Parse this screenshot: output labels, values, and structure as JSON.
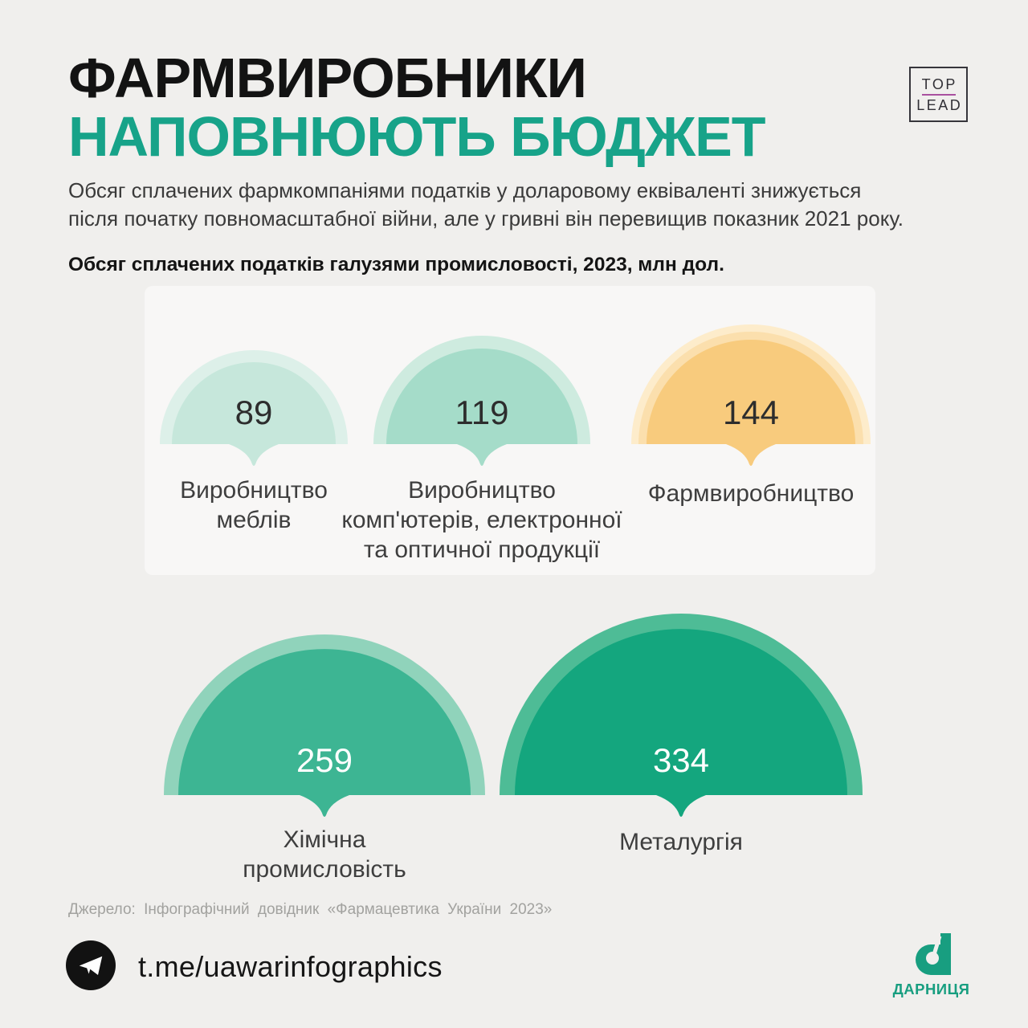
{
  "page": {
    "background": "#f0efed",
    "accent_teal": "#17a389"
  },
  "header": {
    "title_line1": "ФАРМВИРОБНИКИ",
    "title_line2": "НАПОВНЮЮТЬ БЮДЖЕТ",
    "intro_line1": "Обсяг сплачених фармкомпаніями податків у доларовому еквіваленті знижується",
    "intro_line2": "після початку повномасштабної війни, але у гривні він перевищив показник 2021 року."
  },
  "toplead_logo": {
    "top": "TOP",
    "lead": "LEAD",
    "divider_color": "#a9519f",
    "text_color": "#313036"
  },
  "chart_data": {
    "type": "bar",
    "variant": "proportional-area semicircles with pointer tails",
    "title": "Обсяг сплачених податків галузями промисловості, 2023, млн дол.",
    "unit": "млн дол.",
    "year": "2023",
    "categories": [
      "Виробництво меблів",
      "Виробництво комп'ютерів, електронної та оптичної продукції",
      "Фармвиробництво",
      "Хімічна промисловість",
      "Металургія"
    ],
    "values": [
      89,
      119,
      144,
      259,
      334
    ],
    "highlight_category": "Фармвиробництво",
    "legend": "none",
    "items": [
      {
        "value": "89",
        "label_lines": [
          "Виробництво",
          "меблів"
        ],
        "main": "#c6e7db",
        "halo": "#ddf0e9",
        "num_color": "#2d2d2d"
      },
      {
        "value": "119",
        "label_lines": [
          "Виробництво",
          "комп'ютерів, електронної",
          "та оптичної продукції"
        ],
        "main": "#a5dcc9",
        "halo": "#ceebdf",
        "num_color": "#2d2d2d"
      },
      {
        "value": "144",
        "label_lines": [
          "Фармвиробництво"
        ],
        "main": "#f8cb7d",
        "halo": "#fbdfad",
        "halo2": "#fdeccb",
        "num_color": "#2d2d2d"
      },
      {
        "value": "259",
        "label_lines": [
          "Хімічна",
          "промисловість"
        ],
        "main": "#3db593",
        "halo": "#90d3bb",
        "num_color": "#ffffff"
      },
      {
        "value": "334",
        "label_lines": [
          "Металургія"
        ],
        "main": "#14a67e",
        "halo": "#4ebc96",
        "num_color": "#ffffff"
      }
    ]
  },
  "source": "Джерело: Інфографічний довідник «Фармацевтика України 2023»",
  "footer": {
    "telegram_handle": "t.me/uawarinfographics",
    "brand_name": "ДАРНИЦЯ",
    "brand_color": "#189e80"
  }
}
